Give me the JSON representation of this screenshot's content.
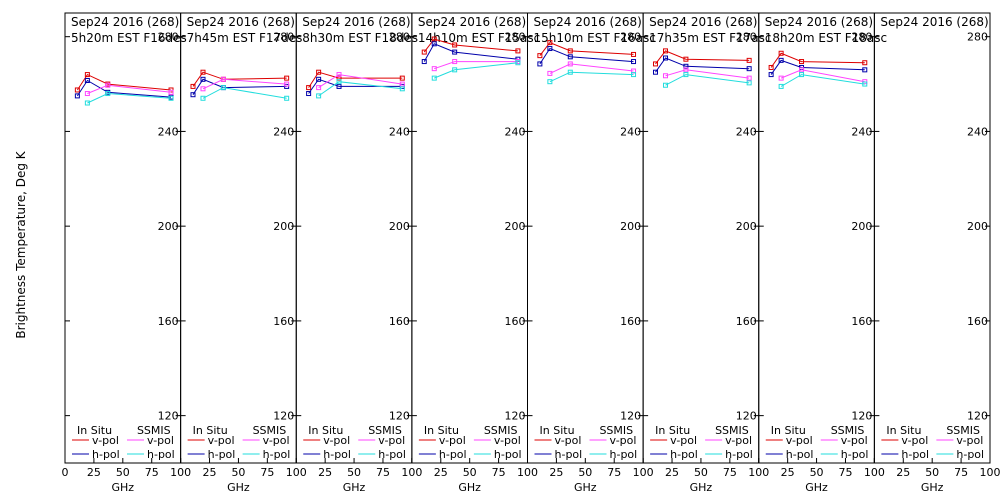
{
  "chart_data": {
    "type": "line",
    "ylabel": "Brightness Temperature, Deg K",
    "xlabel": "GHz",
    "ylim": [
      100,
      290
    ],
    "xlim": [
      0,
      100
    ],
    "yticks": [
      120,
      160,
      200,
      240,
      280
    ],
    "xticks": [
      0,
      25,
      50,
      75,
      100
    ],
    "xtick_labels": [
      "0",
      "25",
      "50",
      "75",
      "100"
    ],
    "first_panel_xtick_labels": [
      "0",
      "25",
      "50",
      "75",
      "100"
    ],
    "other_panel_xtick_labels": [
      "25",
      "50",
      "75",
      "100"
    ],
    "legend": {
      "insitu_header": "In Situ",
      "ssmis_header": "SSMIS",
      "vpol": "v-pol",
      "hpol": "h-pol"
    },
    "colors": {
      "insitu_v": "#dd0000",
      "insitu_h": "#0000aa",
      "ssmis_v": "#ff44ff",
      "ssmis_h": "#22dddd"
    },
    "frequencies_ghz": [
      10.7,
      19.35,
      37,
      91.7
    ],
    "panels": [
      {
        "title": "Sep24 2016 (268)",
        "subtitle": "5h20m EST F16des",
        "series": {
          "insitu_v": [
            257.5,
            264,
            260,
            257.5
          ],
          "insitu_h": [
            255,
            261.5,
            256.5,
            254.5
          ],
          "ssmis_v": [
            null,
            256,
            259.5,
            256.5
          ],
          "ssmis_h": [
            null,
            252,
            256,
            254
          ]
        }
      },
      {
        "title": "Sep24 2016 (268)",
        "subtitle": "7h45m EST F17des",
        "series": {
          "insitu_v": [
            259,
            265,
            262,
            262.5
          ],
          "insitu_h": [
            255.5,
            262,
            258.5,
            259
          ],
          "ssmis_v": [
            null,
            258,
            262,
            260
          ],
          "ssmis_h": [
            null,
            254,
            258.5,
            254
          ]
        }
      },
      {
        "title": "Sep24 2016 (268)",
        "subtitle": "8h30m EST F18des",
        "series": {
          "insitu_v": [
            258.5,
            265,
            262.5,
            262.5
          ],
          "insitu_h": [
            256,
            262,
            259,
            259
          ],
          "ssmis_v": [
            null,
            258.5,
            264,
            260
          ],
          "ssmis_h": [
            null,
            255,
            261,
            258
          ]
        }
      },
      {
        "title": "Sep24 2016 (268)",
        "subtitle": "14h10m EST F15asc",
        "series": {
          "insitu_v": [
            273.5,
            279,
            276.5,
            274
          ],
          "insitu_h": [
            269.5,
            277,
            273.5,
            270.5
          ],
          "ssmis_v": [
            null,
            266.5,
            269.5,
            269.5
          ],
          "ssmis_h": [
            null,
            262.5,
            266,
            269
          ]
        }
      },
      {
        "title": "Sep24 2016 (268)",
        "subtitle": "15h10m EST F16asc",
        "series": {
          "insitu_v": [
            272,
            277.5,
            274,
            272.5
          ],
          "insitu_h": [
            268.5,
            275,
            271.5,
            269.5
          ],
          "ssmis_v": [
            null,
            264.5,
            268.5,
            265.5
          ],
          "ssmis_h": [
            null,
            261,
            265,
            264
          ]
        }
      },
      {
        "title": "Sep24 2016 (268)",
        "subtitle": "17h35m EST F17asc",
        "series": {
          "insitu_v": [
            268.5,
            274,
            270.5,
            270
          ],
          "insitu_h": [
            265,
            271,
            267.5,
            266.5
          ],
          "ssmis_v": [
            null,
            263.5,
            266,
            262.5
          ],
          "ssmis_h": [
            null,
            259.5,
            264,
            260.5
          ]
        }
      },
      {
        "title": "Sep24 2016 (268)",
        "subtitle": "18h20m EST F18asc",
        "series": {
          "insitu_v": [
            267,
            273,
            269.5,
            269
          ],
          "insitu_h": [
            264,
            270,
            267,
            266
          ],
          "ssmis_v": [
            null,
            262.5,
            266,
            261
          ],
          "ssmis_h": [
            null,
            259,
            264,
            260
          ]
        }
      },
      {
        "title": "Sep24 2016 (268)",
        "subtitle": "",
        "series": {
          "insitu_v": [],
          "insitu_h": [],
          "ssmis_v": [],
          "ssmis_h": []
        }
      }
    ]
  }
}
